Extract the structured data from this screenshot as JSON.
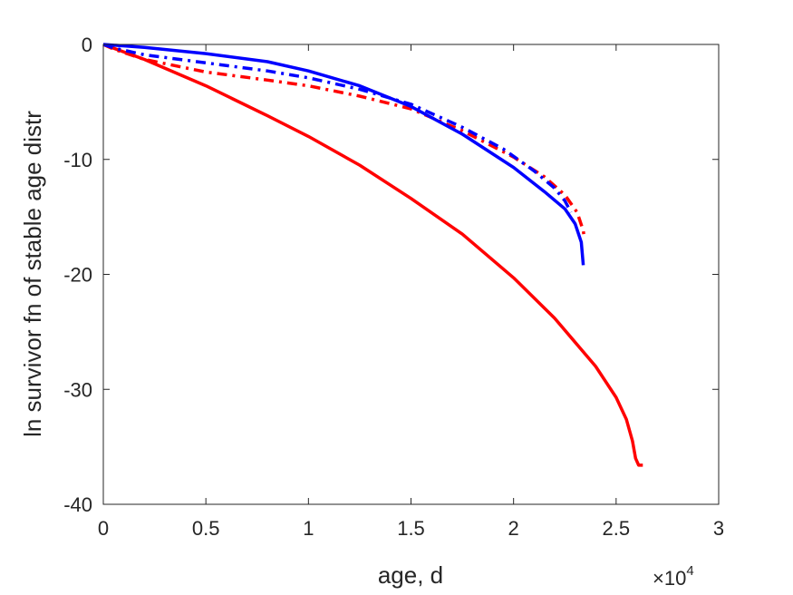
{
  "chart_data": {
    "type": "line",
    "title": "",
    "xlabel": "age, d",
    "ylabel": "ln survivor fn of stable age distr",
    "x_exponent_label": "×10",
    "x_exponent_power": "4",
    "xlim": [
      0,
      30000
    ],
    "ylim": [
      -40,
      0
    ],
    "x_ticks": [
      0,
      5000,
      10000,
      15000,
      20000,
      25000,
      30000
    ],
    "x_tick_labels": [
      "0",
      "0.5",
      "1",
      "1.5",
      "2",
      "2.5",
      "3"
    ],
    "y_ticks": [
      0,
      -10,
      -20,
      -30,
      -40
    ],
    "y_tick_labels": [
      "0",
      "-10",
      "-20",
      "-30",
      "-40"
    ],
    "grid": false,
    "series": [
      {
        "color": "#ff0000",
        "style": "solid",
        "points": [
          [
            0,
            0
          ],
          [
            2000,
            -1.3
          ],
          [
            5000,
            -3.6
          ],
          [
            8000,
            -6.2
          ],
          [
            10000,
            -8.0
          ],
          [
            12500,
            -10.5
          ],
          [
            15000,
            -13.4
          ],
          [
            17500,
            -16.5
          ],
          [
            20000,
            -20.3
          ],
          [
            22000,
            -23.8
          ],
          [
            24000,
            -28.0
          ],
          [
            25000,
            -30.7
          ],
          [
            25500,
            -32.6
          ],
          [
            25800,
            -34.5
          ],
          [
            25950,
            -36.0
          ],
          [
            26100,
            -36.6
          ],
          [
            26300,
            -36.6
          ]
        ]
      },
      {
        "color": "#ff0000",
        "style": "dashdot",
        "points": [
          [
            0,
            0
          ],
          [
            500,
            -0.4
          ],
          [
            2000,
            -1.3
          ],
          [
            5000,
            -2.4
          ],
          [
            8000,
            -3.1
          ],
          [
            10000,
            -3.6
          ],
          [
            12500,
            -4.5
          ],
          [
            15000,
            -5.6
          ],
          [
            17500,
            -7.5
          ],
          [
            20000,
            -9.8
          ],
          [
            21500,
            -11.5
          ],
          [
            22500,
            -13.1
          ],
          [
            23100,
            -14.6
          ],
          [
            23400,
            -16.2
          ],
          [
            23450,
            -16.9
          ]
        ]
      },
      {
        "color": "#0000ff",
        "style": "dashdot",
        "points": [
          [
            0,
            0
          ],
          [
            500,
            -0.3
          ],
          [
            2000,
            -0.9
          ],
          [
            5000,
            -1.6
          ],
          [
            8000,
            -2.3
          ],
          [
            10000,
            -2.9
          ],
          [
            12500,
            -3.9
          ],
          [
            15000,
            -5.2
          ],
          [
            17500,
            -7.2
          ],
          [
            19500,
            -9.1
          ],
          [
            21000,
            -11.0
          ],
          [
            22000,
            -12.5
          ],
          [
            22500,
            -13.6
          ],
          [
            22800,
            -14.6
          ]
        ]
      },
      {
        "color": "#0000ff",
        "style": "solid",
        "points": [
          [
            0,
            0
          ],
          [
            2000,
            -0.25
          ],
          [
            5000,
            -0.8
          ],
          [
            8000,
            -1.5
          ],
          [
            10000,
            -2.3
          ],
          [
            12500,
            -3.6
          ],
          [
            15000,
            -5.4
          ],
          [
            17500,
            -7.8
          ],
          [
            20000,
            -10.7
          ],
          [
            21500,
            -12.8
          ],
          [
            22500,
            -14.3
          ],
          [
            23000,
            -15.6
          ],
          [
            23300,
            -17.2
          ],
          [
            23400,
            -19.2
          ]
        ]
      }
    ]
  }
}
